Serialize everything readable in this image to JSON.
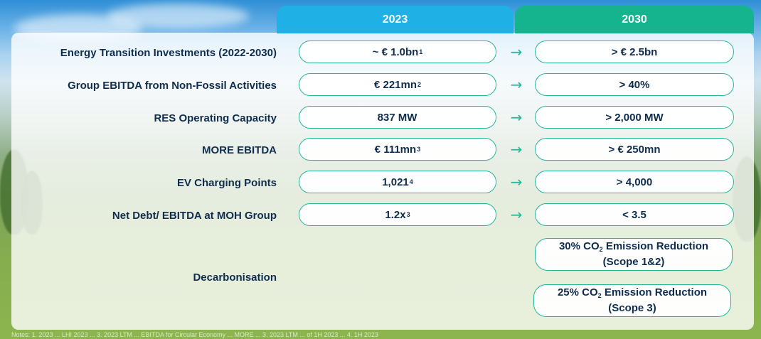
{
  "headers": {
    "col_2023": "2023",
    "col_2030": "2030"
  },
  "rows": [
    {
      "label": "Energy Transition Investments (2022-2030)",
      "v2023": "~ € 1.0bn",
      "v2023_note": "1",
      "v2030": "> € 2.5bn"
    },
    {
      "label": "Group EBITDA from Non-Fossil Activities",
      "v2023": "€ 221mn",
      "v2023_note": "2",
      "v2030": "> 40%"
    },
    {
      "label": "RES Operating Capacity",
      "v2023": "837 MW",
      "v2023_note": "",
      "v2030": "> 2,000 MW"
    },
    {
      "label": "MORE EBITDA",
      "v2023": "€ 111mn",
      "v2023_note": "3",
      "v2030": "> € 250mn"
    },
    {
      "label": "EV Charging Points",
      "v2023": "1,021",
      "v2023_note": "4",
      "v2030": "> 4,000"
    },
    {
      "label": "Net Debt/ EBITDA at MOH Group",
      "v2023": "1.2x",
      "v2023_note": "3",
      "v2030": "< 3.5"
    }
  ],
  "arrow_glyph": "→",
  "decarbonisation": {
    "label": "Decarbonisation",
    "target1": {
      "pre": "30% CO",
      "sub": "2",
      "post": " Emission Reduction",
      "line2": "(Scope 1&2)"
    },
    "target2": {
      "pre": "25% CO",
      "sub": "2",
      "post": " Emission Reduction",
      "line2": "(Scope 3)"
    }
  },
  "footnote": "Notes: 1. 2023 ... LHI 2023 ... 3. 2023 LTM ... EBITDA for Circular Economy ... MORE ... 3. 2023 LTM ... of 1H 2023 ... 4. 1H 2023"
}
